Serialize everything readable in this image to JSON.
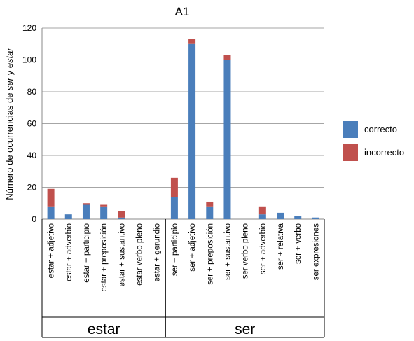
{
  "chart_data": {
    "type": "bar",
    "stacked": true,
    "title": "A1",
    "ylabel_parts": [
      {
        "text": "Número de ocurrencias de ",
        "italic": false
      },
      {
        "text": "ser",
        "italic": true
      },
      {
        "text": " y ",
        "italic": false
      },
      {
        "text": "estar",
        "italic": true
      }
    ],
    "ylim": [
      0,
      120
    ],
    "yticks": [
      0,
      20,
      40,
      60,
      80,
      100,
      120
    ],
    "grid": true,
    "legend_position": "right",
    "categories": [
      "estar + adjetivo",
      "estar + adverbio",
      "estar + participio",
      "estar + preposición",
      "estar + sustantivo",
      "estar verbo pleno",
      "estar + gerundio",
      "ser + participio",
      "ser + adjetivo",
      "ser + preposición",
      "ser + sustantivo",
      "ser verbo pleno",
      "ser + adverbio",
      "ser + relativa",
      "ser + verbo",
      "ser expresiones"
    ],
    "groups": [
      {
        "label": "estar",
        "start": 0,
        "end": 6
      },
      {
        "label": "ser",
        "start": 7,
        "end": 15
      }
    ],
    "series": [
      {
        "name": "correcto",
        "color": "#4A7EBB",
        "values": [
          8,
          3,
          9,
          8,
          1,
          0,
          0,
          14,
          110,
          8,
          100,
          0,
          3,
          4,
          2,
          1
        ]
      },
      {
        "name": "incorrecto",
        "color": "#C0504D",
        "values": [
          11,
          0,
          1,
          1,
          4,
          0,
          0,
          12,
          3,
          3,
          3,
          0,
          5,
          0,
          0,
          0
        ]
      }
    ]
  }
}
